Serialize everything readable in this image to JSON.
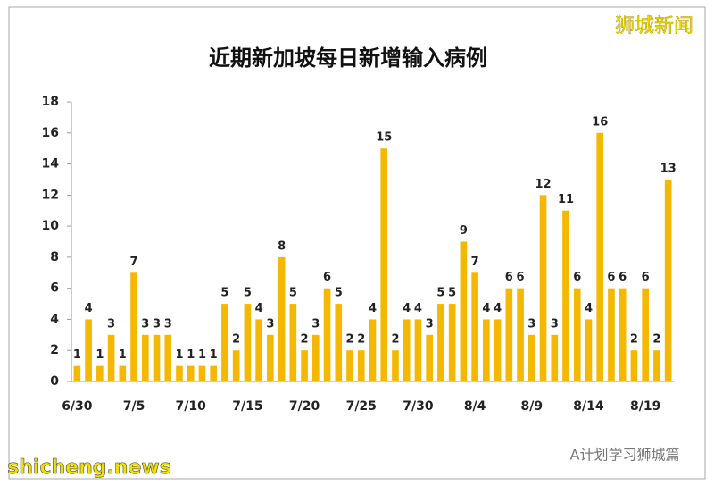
{
  "chart_data": {
    "type": "bar",
    "title": "近期新加坡每日新增输入病例",
    "categories": [
      "6/30",
      null,
      null,
      null,
      null,
      "7/5",
      null,
      null,
      null,
      null,
      "7/10",
      null,
      null,
      null,
      null,
      "7/15",
      null,
      null,
      null,
      null,
      "7/20",
      null,
      null,
      null,
      null,
      "7/25",
      null,
      null,
      null,
      null,
      "7/30",
      null,
      null,
      null,
      null,
      "8/4",
      null,
      null,
      null,
      null,
      "8/9",
      null,
      null,
      null,
      null,
      "8/14",
      null,
      null,
      null,
      null,
      "8/19",
      null,
      null
    ],
    "values": [
      1,
      4,
      1,
      3,
      1,
      7,
      3,
      3,
      3,
      1,
      1,
      1,
      1,
      5,
      2,
      5,
      4,
      3,
      8,
      5,
      2,
      3,
      6,
      5,
      2,
      2,
      4,
      15,
      2,
      4,
      4,
      3,
      5,
      5,
      9,
      7,
      4,
      4,
      6,
      6,
      3,
      12,
      3,
      11,
      6,
      4,
      16,
      6,
      6,
      2,
      6,
      2,
      13
    ],
    "color": "#f5b800",
    "ylim": [
      0,
      18
    ],
    "yticks": [
      0,
      2,
      4,
      6,
      8,
      10,
      12,
      14,
      16,
      18
    ],
    "grid": false
  },
  "watermarks": [
    "狮城新闻",
    "shicheng.news",
    "A计划学习狮城篇"
  ]
}
